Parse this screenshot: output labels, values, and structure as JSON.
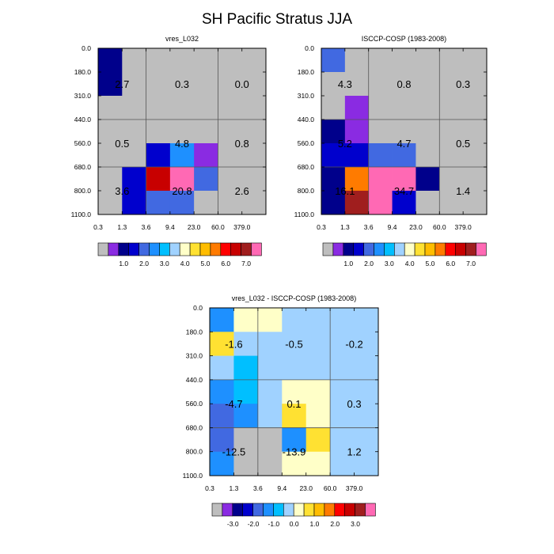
{
  "title": "SH Pacific Stratus JJA",
  "x_tick_labels": [
    "0.3",
    "1.3",
    "3.6",
    "9.4",
    "23.0",
    "60.0",
    "379.0"
  ],
  "y_tick_labels": [
    "0.0",
    "180.0",
    "310.0",
    "440.0",
    "560.0",
    "680.0",
    "800.0",
    "1100.0"
  ],
  "colors": {
    "missing": "#bebebe",
    "grid": "#555555",
    "frame": "#000000",
    "levels_abs": [
      "#bebebe",
      "#8a2be2",
      "#00008b",
      "#0000cd",
      "#4169e1",
      "#1e90ff",
      "#00bfff",
      "#a0d2ff",
      "#ffffc8",
      "#ffe132",
      "#ffbd00",
      "#ff7b00",
      "#ff0000",
      "#c80000",
      "#a01e1e",
      "#ff69b4"
    ],
    "levels_diff": [
      "#bebebe",
      "#8a2be2",
      "#00008b",
      "#0000cd",
      "#4169e1",
      "#1e90ff",
      "#00bfff",
      "#a0d2ff",
      "#ffffc8",
      "#ffe132",
      "#ffbd00",
      "#ff7b00",
      "#ff0000",
      "#c80000",
      "#a01e1e",
      "#ff69b4"
    ]
  },
  "chart_data": [
    {
      "type": "heatmap",
      "title": "vres_L032",
      "xlabel": "",
      "ylabel": "",
      "x_bins": 7,
      "y_bins": 7,
      "cells": [
        [
          "#00008b",
          "#bebebe",
          "#bebebe",
          "#bebebe",
          "#bebebe",
          "#bebebe",
          "#bebebe"
        ],
        [
          "#00008b",
          "#bebebe",
          "#bebebe",
          "#bebebe",
          "#bebebe",
          "#bebebe",
          "#bebebe"
        ],
        [
          "#bebebe",
          "#bebebe",
          "#bebebe",
          "#bebebe",
          "#bebebe",
          "#bebebe",
          "#bebebe"
        ],
        [
          "#bebebe",
          "#bebebe",
          "#bebebe",
          "#bebebe",
          "#bebebe",
          "#bebebe",
          "#bebebe"
        ],
        [
          "#bebebe",
          "#bebebe",
          "#0000cd",
          "#1e90ff",
          "#8a2be2",
          "#bebebe",
          "#bebebe"
        ],
        [
          "#bebebe",
          "#0000cd",
          "#c80000",
          "#ff69b4",
          "#4169e1",
          "#bebebe",
          "#bebebe"
        ],
        [
          "#bebebe",
          "#0000cd",
          "#4169e1",
          "#4169e1",
          "#bebebe",
          "#bebebe",
          "#bebebe"
        ]
      ],
      "annotations": [
        [
          "2.7",
          "0.3",
          "0.0"
        ],
        [
          "0.5",
          "4.8",
          "0.8"
        ],
        [
          "3.6",
          "20.8",
          "2.6"
        ]
      ],
      "colorbar_labels": [
        "1.0",
        "2.0",
        "3.0",
        "4.0",
        "5.0",
        "6.0",
        "7.0"
      ]
    },
    {
      "type": "heatmap",
      "title": "ISCCP-COSP (1983-2008)",
      "xlabel": "",
      "ylabel": "",
      "x_bins": 7,
      "y_bins": 7,
      "cells": [
        [
          "#4169e1",
          "#bebebe",
          "#bebebe",
          "#bebebe",
          "#bebebe",
          "#bebebe",
          "#bebebe"
        ],
        [
          "#bebebe",
          "#bebebe",
          "#bebebe",
          "#bebebe",
          "#bebebe",
          "#bebebe",
          "#bebebe"
        ],
        [
          "#bebebe",
          "#8a2be2",
          "#bebebe",
          "#bebebe",
          "#bebebe",
          "#bebebe",
          "#bebebe"
        ],
        [
          "#00008b",
          "#8a2be2",
          "#bebebe",
          "#bebebe",
          "#bebebe",
          "#bebebe",
          "#bebebe"
        ],
        [
          "#0000cd",
          "#0000cd",
          "#4169e1",
          "#4169e1",
          "#bebebe",
          "#bebebe",
          "#bebebe"
        ],
        [
          "#00008b",
          "#ff7b00",
          "#ff69b4",
          "#ff69b4",
          "#00008b",
          "#bebebe",
          "#bebebe"
        ],
        [
          "#00008b",
          "#a01e1e",
          "#ff69b4",
          "#0000cd",
          "#bebebe",
          "#bebebe",
          "#bebebe"
        ]
      ],
      "annotations": [
        [
          "4.3",
          "0.8",
          "0.3"
        ],
        [
          "5.2",
          "4.7",
          "0.5"
        ],
        [
          "16.1",
          "34.7",
          "1.4"
        ]
      ],
      "colorbar_labels": [
        "1.0",
        "2.0",
        "3.0",
        "4.0",
        "5.0",
        "6.0",
        "7.0"
      ]
    },
    {
      "type": "heatmap",
      "title": "vres_L032 - ISCCP-COSP (1983-2008)",
      "xlabel": "",
      "ylabel": "",
      "x_bins": 7,
      "y_bins": 7,
      "cells": [
        [
          "#1e90ff",
          "#ffffc8",
          "#ffffc8",
          "#a0d2ff",
          "#a0d2ff",
          "#a0d2ff",
          "#a0d2ff"
        ],
        [
          "#ffe132",
          "#a0d2ff",
          "#a0d2ff",
          "#a0d2ff",
          "#a0d2ff",
          "#a0d2ff",
          "#a0d2ff"
        ],
        [
          "#a0d2ff",
          "#00bfff",
          "#a0d2ff",
          "#a0d2ff",
          "#a0d2ff",
          "#a0d2ff",
          "#a0d2ff"
        ],
        [
          "#1e90ff",
          "#00bfff",
          "#a0d2ff",
          "#ffffc8",
          "#ffffc8",
          "#a0d2ff",
          "#a0d2ff"
        ],
        [
          "#4169e1",
          "#1e90ff",
          "#a0d2ff",
          "#ffe132",
          "#ffffc8",
          "#a0d2ff",
          "#a0d2ff"
        ],
        [
          "#4169e1",
          "#bebebe",
          "#bebebe",
          "#1e90ff",
          "#ffe132",
          "#a0d2ff",
          "#a0d2ff"
        ],
        [
          "#1e90ff",
          "#bebebe",
          "#bebebe",
          "#ffffc8",
          "#ffffc8",
          "#a0d2ff",
          "#a0d2ff"
        ]
      ],
      "annotations": [
        [
          "-1.6",
          "-0.5",
          "-0.2"
        ],
        [
          "-4.7",
          "0.1",
          "0.3"
        ],
        [
          "-12.5",
          "-13.9",
          "1.2"
        ]
      ],
      "colorbar_labels": [
        "-3.0",
        "-2.0",
        "-1.0",
        "0.0",
        "1.0",
        "2.0",
        "3.0"
      ]
    }
  ]
}
